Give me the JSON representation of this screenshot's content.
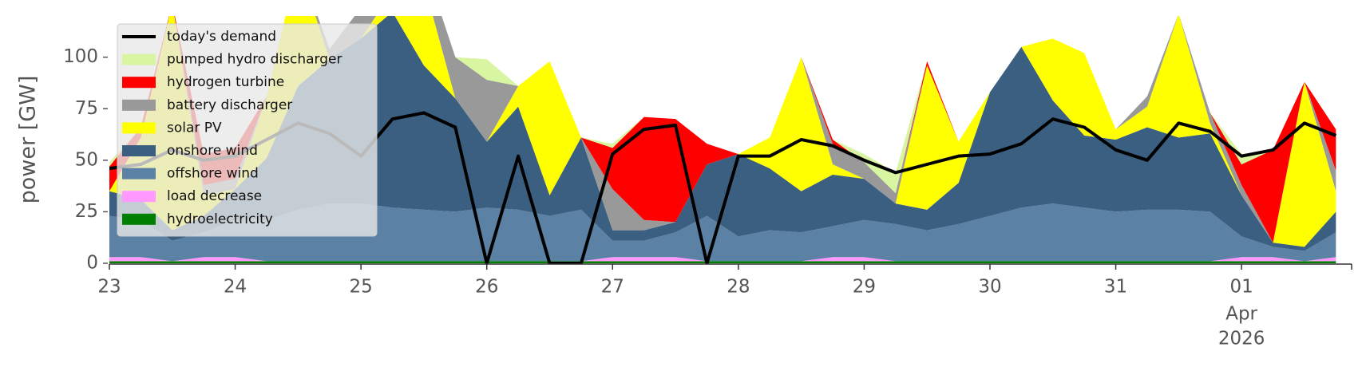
{
  "chart_data": {
    "type": "area",
    "y_label": "power [GW]",
    "ylim": [
      0,
      120
    ],
    "yticks": [
      0,
      25,
      50,
      75,
      100
    ],
    "xlim": [
      "2026-03-23T00:00",
      "2026-04-01T21:00"
    ],
    "xticks": [
      {
        "value": "2026-03-23T00:00",
        "label": "23"
      },
      {
        "value": "2026-03-24T00:00",
        "label": "24"
      },
      {
        "value": "2026-03-25T00:00",
        "label": "25"
      },
      {
        "value": "2026-03-26T00:00",
        "label": "26"
      },
      {
        "value": "2026-03-27T00:00",
        "label": "27"
      },
      {
        "value": "2026-03-28T00:00",
        "label": "28"
      },
      {
        "value": "2026-03-29T00:00",
        "label": "29"
      },
      {
        "value": "2026-03-30T00:00",
        "label": "30"
      },
      {
        "value": "2026-03-31T00:00",
        "label": "31"
      },
      {
        "value": "2026-04-01T00:00",
        "label": "01",
        "sublabels": [
          "Apr",
          "2026"
        ]
      }
    ],
    "legend": "upper left",
    "grid": false,
    "x": [
      "2026-03-23T00:00",
      "2026-03-23T06:00",
      "2026-03-23T12:00",
      "2026-03-23T18:00",
      "2026-03-24T00:00",
      "2026-03-24T06:00",
      "2026-03-24T12:00",
      "2026-03-24T18:00",
      "2026-03-25T00:00",
      "2026-03-25T06:00",
      "2026-03-25T12:00",
      "2026-03-25T18:00",
      "2026-03-26T00:00",
      "2026-03-26T06:00",
      "2026-03-26T12:00",
      "2026-03-26T18:00",
      "2026-03-27T00:00",
      "2026-03-27T06:00",
      "2026-03-27T12:00",
      "2026-03-27T18:00",
      "2026-03-28T00:00",
      "2026-03-28T06:00",
      "2026-03-28T12:00",
      "2026-03-28T18:00",
      "2026-03-29T00:00",
      "2026-03-29T06:00",
      "2026-03-29T12:00",
      "2026-03-29T18:00",
      "2026-03-30T00:00",
      "2026-03-30T06:00",
      "2026-03-30T12:00",
      "2026-03-30T18:00",
      "2026-03-31T00:00",
      "2026-03-31T06:00",
      "2026-03-31T12:00",
      "2026-03-31T18:00",
      "2026-04-01T00:00",
      "2026-04-01T06:00",
      "2026-04-01T12:00",
      "2026-04-01T18:00"
    ],
    "series": [
      {
        "name": "today's demand",
        "type": "line",
        "color": "#000000",
        "values": [
          46,
          48,
          55,
          50,
          52,
          60,
          68,
          63,
          52,
          70,
          73,
          66,
          0,
          52,
          0,
          0,
          53,
          65,
          67,
          0,
          52,
          52,
          60,
          57,
          50,
          44,
          48,
          52,
          53,
          58,
          70,
          66,
          55,
          50,
          68,
          64,
          52,
          55,
          68,
          62
        ]
      },
      {
        "name": "pumped hydro discharger",
        "color": "#d8f5a2",
        "values": [
          2,
          0,
          0,
          0,
          0,
          0,
          0,
          0,
          0,
          0,
          0,
          0,
          10,
          0,
          0,
          0,
          2,
          0,
          0,
          0,
          0,
          0,
          0,
          0,
          4,
          10,
          0,
          0,
          0,
          0,
          0,
          0,
          0,
          0,
          0,
          0,
          5,
          0,
          0,
          0
        ]
      },
      {
        "name": "hydrogen turbine",
        "color": "#ff0000",
        "values": [
          12,
          5,
          0,
          15,
          15,
          0,
          0,
          0,
          0,
          0,
          0,
          0,
          0,
          0,
          0,
          0,
          20,
          50,
          50,
          10,
          0,
          0,
          0,
          2,
          0,
          0,
          2,
          0,
          0,
          0,
          0,
          0,
          0,
          0,
          0,
          0,
          10,
          45,
          0,
          20
        ]
      },
      {
        "name": "battery discharger",
        "color": "#999999",
        "values": [
          0,
          0,
          0,
          5,
          5,
          0,
          0,
          5,
          15,
          0,
          10,
          20,
          30,
          0,
          0,
          0,
          20,
          5,
          0,
          0,
          0,
          0,
          0,
          10,
          8,
          5,
          0,
          0,
          0,
          0,
          0,
          0,
          0,
          5,
          0,
          5,
          5,
          0,
          0,
          10
        ]
      },
      {
        "name": "solar PV",
        "color": "#ffff00",
        "values": [
          0,
          30,
          110,
          10,
          0,
          30,
          60,
          0,
          0,
          10,
          40,
          0,
          0,
          10,
          65,
          0,
          0,
          0,
          0,
          0,
          0,
          15,
          65,
          5,
          0,
          0,
          70,
          20,
          0,
          0,
          30,
          40,
          5,
          10,
          60,
          5,
          0,
          0,
          80,
          10
        ]
      },
      {
        "name": "onshore wind",
        "color": "#3b5f80",
        "values": [
          12,
          10,
          5,
          8,
          15,
          30,
          60,
          70,
          80,
          95,
          70,
          55,
          32,
          50,
          10,
          35,
          5,
          5,
          5,
          25,
          40,
          30,
          20,
          25,
          20,
          10,
          10,
          20,
          60,
          78,
          50,
          35,
          35,
          40,
          35,
          38,
          20,
          2,
          2,
          10
        ]
      },
      {
        "name": "offshore wind",
        "color": "#5b81a5",
        "values": [
          20,
          18,
          10,
          12,
          18,
          20,
          25,
          28,
          28,
          26,
          25,
          24,
          26,
          25,
          22,
          25,
          8,
          8,
          12,
          22,
          12,
          15,
          14,
          15,
          18,
          18,
          15,
          18,
          22,
          26,
          28,
          26,
          24,
          25,
          25,
          24,
          10,
          5,
          5,
          12
        ]
      },
      {
        "name": "load decrease",
        "color": "#ff99ff",
        "values": [
          2,
          2,
          0,
          2,
          2,
          0,
          0,
          0,
          0,
          0,
          0,
          0,
          0,
          0,
          0,
          0,
          2,
          2,
          2,
          0,
          0,
          0,
          0,
          2,
          2,
          0,
          0,
          0,
          0,
          0,
          0,
          0,
          0,
          0,
          0,
          0,
          2,
          2,
          0,
          2
        ]
      },
      {
        "name": "hydroelectricity",
        "color": "#008000",
        "values": [
          1,
          1,
          1,
          1,
          1,
          1,
          1,
          1,
          1,
          1,
          1,
          1,
          1,
          1,
          1,
          1,
          1,
          1,
          1,
          1,
          1,
          1,
          1,
          1,
          1,
          1,
          1,
          1,
          1,
          1,
          1,
          1,
          1,
          1,
          1,
          1,
          1,
          1,
          1,
          1
        ]
      }
    ]
  }
}
